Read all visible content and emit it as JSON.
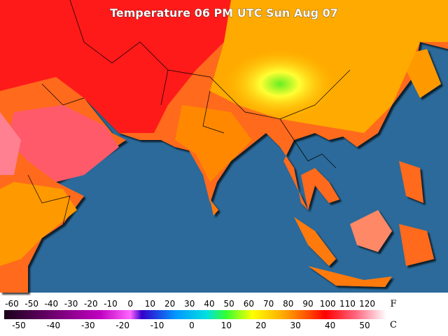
{
  "title": "Temperature 06 PM UTC Sun Aug 07",
  "scale": {
    "fahrenheit": {
      "unit": "F",
      "labels": [
        -60,
        -50,
        -40,
        -30,
        -20,
        -10,
        0,
        10,
        20,
        30,
        40,
        50,
        60,
        70,
        80,
        90,
        100,
        110,
        120
      ]
    },
    "celsius": {
      "unit": "C",
      "labels": [
        -50,
        -40,
        -30,
        -20,
        -10,
        0,
        10,
        20,
        30,
        40,
        50
      ]
    }
  }
}
